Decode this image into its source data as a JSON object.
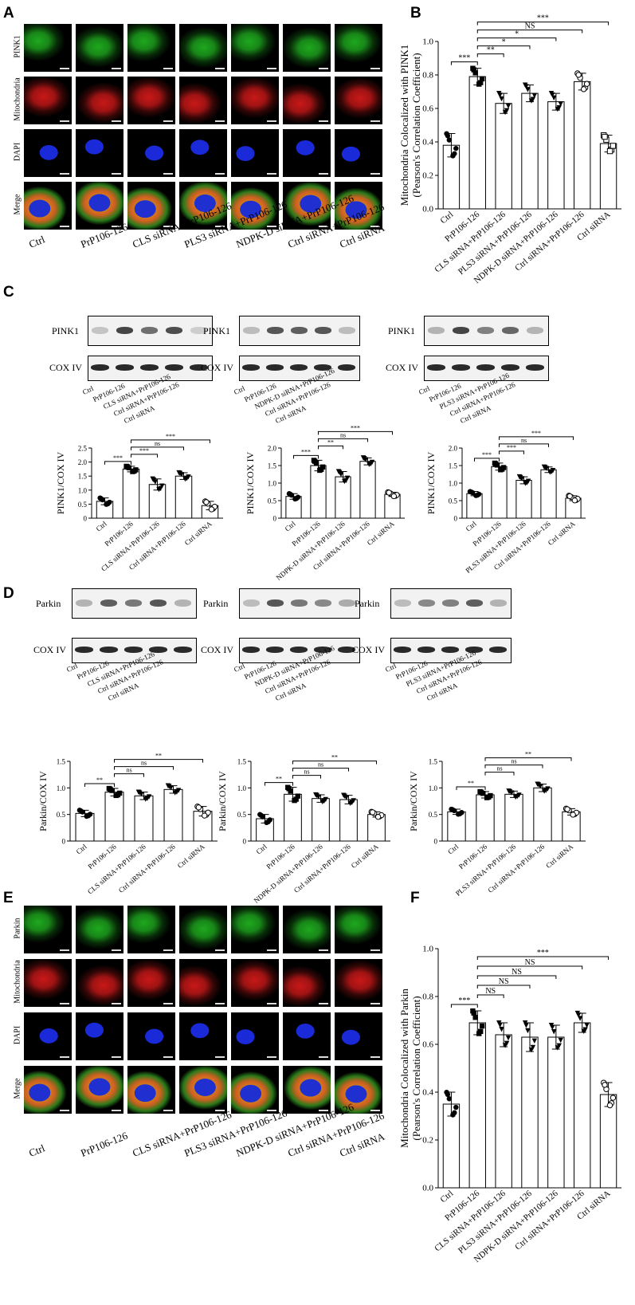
{
  "figure": {
    "panel_letters": [
      "A",
      "B",
      "C",
      "D",
      "E",
      "F"
    ]
  },
  "panelA": {
    "rows": [
      "PINK1",
      "Mitochondria",
      "DAPI",
      "Merge"
    ],
    "row_colors": [
      "#1ea81e",
      "#c81818",
      "#1a2ad8",
      "#c8b41e"
    ],
    "cols": [
      "Ctrl",
      "PrP106-126",
      "CLS siRNA+PrP106-126",
      "PLS3 siRNA+PrP106-126",
      "NDPK-D siRNA+PrP106-126",
      "Ctrl siRNA+PrP106-126",
      "Ctrl siRNA"
    ]
  },
  "panelE": {
    "rows": [
      "Parkin",
      "Mitochondria",
      "DAPI",
      "Merge"
    ],
    "row_colors": [
      "#1ea81e",
      "#c81818",
      "#1a2ad8",
      "#c8b41e"
    ],
    "cols": [
      "Ctrl",
      "PrP106-126",
      "CLS siRNA+PrP106-126",
      "PLS3 siRNA+PrP106-126",
      "NDPK-D siRNA+PrP106-126",
      "Ctrl siRNA+PrP106-126",
      "Ctrl siRNA"
    ]
  },
  "blotsC": [
    {
      "protein": "PINK1",
      "loading": "COX IV",
      "lanes": [
        "Ctrl",
        "PrP106-126",
        "CLS siRNA+PrP106-126",
        "Ctrl siRNA+PrP106-126",
        "Ctrl siRNA"
      ]
    },
    {
      "protein": "PINK1",
      "loading": "COX IV",
      "lanes": [
        "Ctrl",
        "PrP106-126",
        "NDPK-D siRNA+PrP106-126",
        "Ctrl siRNA+PrP106-126",
        "Ctrl siRNA"
      ]
    },
    {
      "protein": "PINK1",
      "loading": "COX IV",
      "lanes": [
        "Ctrl",
        "PrP106-126",
        "PLS3 siRNA+PrP106-126",
        "Ctrl siRNA+PrP106-126",
        "Ctrl siRNA"
      ]
    }
  ],
  "blotsD": [
    {
      "protein": "Parkin",
      "loading": "COX IV",
      "lanes": [
        "Ctrl",
        "PrP106-126",
        "CLS siRNA+PrP106-126",
        "Ctrl siRNA+PrP106-126",
        "Ctrl siRNA"
      ]
    },
    {
      "protein": "Parkin",
      "loading": "COX IV",
      "lanes": [
        "Ctrl",
        "PrP106-126",
        "NDPK-D siRNA+PrP106-126",
        "Ctrl siRNA+PrP106-126",
        "Ctrl siRNA"
      ]
    },
    {
      "protein": "Parkin",
      "loading": "COX IV",
      "lanes": [
        "Ctrl",
        "PrP106-126",
        "PLS3 siRNA+PrP106-126",
        "Ctrl siRNA+PrP106-126",
        "Ctrl siRNA"
      ]
    }
  ],
  "chart_data": [
    {
      "id": "B",
      "type": "bar",
      "ylabel": "Mitochondria Colocalized with PINK1 (Pearson's Correlation Coefficient)",
      "categories": [
        "Ctrl",
        "PrP106-126",
        "CLS siRNA+PrP106-126",
        "PLS3 siRNA+PrP106-126",
        "NDPK-D siRNA+PrP106-126",
        "Ctrl siRNA+PrP106-126",
        "Ctrl siRNA"
      ],
      "values": [
        0.38,
        0.79,
        0.63,
        0.69,
        0.64,
        0.76,
        0.39
      ],
      "errors": [
        0.07,
        0.05,
        0.06,
        0.05,
        0.05,
        0.05,
        0.05
      ],
      "ylim": [
        0,
        1.0
      ],
      "yticks": [
        "0.0",
        "0.2",
        "0.4",
        "0.6",
        "0.8",
        "1.0"
      ],
      "markers": [
        "circle",
        "square",
        "triangle",
        "triangle",
        "triangle",
        "open-circle",
        "open-square"
      ],
      "sig": [
        {
          "from": 0,
          "to": 1,
          "label": "***"
        },
        {
          "from": 1,
          "to": 2,
          "label": "**"
        },
        {
          "from": 1,
          "to": 3,
          "label": "*"
        },
        {
          "from": 1,
          "to": 4,
          "label": "*"
        },
        {
          "from": 1,
          "to": 5,
          "label": "NS"
        },
        {
          "from": 1,
          "to": 6,
          "label": "***"
        }
      ]
    },
    {
      "id": "C1",
      "type": "bar",
      "ylabel": "PINK1/COX IV",
      "categories": [
        "Ctrl",
        "PrP106-126",
        "CLS siRNA+PrP106-126",
        "Ctrl siRNA+PrP106-126",
        "Ctrl siRNA"
      ],
      "values": [
        0.6,
        1.75,
        1.2,
        1.5,
        0.45
      ],
      "errors": [
        0.12,
        0.1,
        0.2,
        0.12,
        0.15
      ],
      "ylim": [
        0,
        2.5
      ],
      "yticks": [
        "0",
        "0.5",
        "1.0",
        "1.5",
        "2.0",
        "2.5"
      ],
      "markers": [
        "circle",
        "square",
        "triangle",
        "triangle",
        "open-circle"
      ],
      "sig": [
        {
          "from": 0,
          "to": 1,
          "label": "***"
        },
        {
          "from": 1,
          "to": 2,
          "label": "***"
        },
        {
          "from": 1,
          "to": 3,
          "label": "ns"
        },
        {
          "from": 1,
          "to": 4,
          "label": "***"
        }
      ]
    },
    {
      "id": "C2",
      "type": "bar",
      "ylabel": "PINK1/COX IV",
      "categories": [
        "Ctrl",
        "PrP106-126",
        "NDPK-D siRNA+PrP106-126",
        "Ctrl siRNA+PrP106-126",
        "Ctrl siRNA"
      ],
      "values": [
        0.62,
        1.5,
        1.18,
        1.62,
        0.68
      ],
      "errors": [
        0.08,
        0.15,
        0.15,
        0.1,
        0.06
      ],
      "ylim": [
        0,
        2.0
      ],
      "yticks": [
        "0",
        "0.5",
        "1.0",
        "1.5",
        "2.0"
      ],
      "markers": [
        "circle",
        "square",
        "triangle",
        "triangle",
        "open-circle"
      ],
      "sig": [
        {
          "from": 0,
          "to": 1,
          "label": "***"
        },
        {
          "from": 1,
          "to": 2,
          "label": "**"
        },
        {
          "from": 1,
          "to": 3,
          "label": "ns"
        },
        {
          "from": 1,
          "to": 4,
          "label": "***"
        }
      ]
    },
    {
      "id": "C3",
      "type": "bar",
      "ylabel": "PINK1/COX IV",
      "categories": [
        "Ctrl",
        "PrP106-126",
        "PLS3 siRNA+PrP106-126",
        "Ctrl siRNA+PrP106-126",
        "Ctrl siRNA"
      ],
      "values": [
        0.7,
        1.47,
        1.08,
        1.38,
        0.57
      ],
      "errors": [
        0.06,
        0.1,
        0.1,
        0.08,
        0.07
      ],
      "ylim": [
        0,
        2.0
      ],
      "yticks": [
        "0",
        "0.5",
        "1.0",
        "1.5",
        "2.0"
      ],
      "markers": [
        "circle",
        "square",
        "triangle",
        "triangle",
        "open-circle"
      ],
      "sig": [
        {
          "from": 0,
          "to": 1,
          "label": "***"
        },
        {
          "from": 1,
          "to": 2,
          "label": "***"
        },
        {
          "from": 1,
          "to": 3,
          "label": "ns"
        },
        {
          "from": 1,
          "to": 4,
          "label": "***"
        }
      ]
    },
    {
      "id": "D1",
      "type": "bar",
      "ylabel": "Parkin/COX IV",
      "categories": [
        "Ctrl",
        "PrP106-126",
        "CLS siRNA+PrP106-126",
        "Ctrl siRNA+PrP106-126",
        "Ctrl siRNA"
      ],
      "values": [
        0.52,
        0.92,
        0.85,
        0.97,
        0.56
      ],
      "errors": [
        0.06,
        0.07,
        0.07,
        0.07,
        0.09
      ],
      "ylim": [
        0,
        1.5
      ],
      "yticks": [
        "0",
        "0.5",
        "1.0",
        "1.5"
      ],
      "markers": [
        "circle",
        "square",
        "triangle",
        "triangle",
        "open-circle"
      ],
      "sig": [
        {
          "from": 0,
          "to": 1,
          "label": "**"
        },
        {
          "from": 1,
          "to": 2,
          "label": "ns"
        },
        {
          "from": 1,
          "to": 3,
          "label": "ns"
        },
        {
          "from": 1,
          "to": 4,
          "label": "**"
        }
      ]
    },
    {
      "id": "D2",
      "type": "bar",
      "ylabel": "Parkin/COX IV",
      "categories": [
        "Ctrl",
        "PrP106-126",
        "NDPK-D siRNA+PrP106-126",
        "Ctrl siRNA+PrP106-126",
        "Ctrl siRNA"
      ],
      "values": [
        0.42,
        0.88,
        0.8,
        0.78,
        0.5
      ],
      "errors": [
        0.08,
        0.13,
        0.07,
        0.08,
        0.05
      ],
      "ylim": [
        0,
        1.5
      ],
      "yticks": [
        "0",
        "0.5",
        "1.0",
        "1.5"
      ],
      "markers": [
        "circle",
        "square",
        "triangle",
        "triangle",
        "open-circle"
      ],
      "sig": [
        {
          "from": 0,
          "to": 1,
          "label": "**"
        },
        {
          "from": 1,
          "to": 2,
          "label": "ns"
        },
        {
          "from": 1,
          "to": 3,
          "label": "ns"
        },
        {
          "from": 1,
          "to": 4,
          "label": "**"
        }
      ]
    },
    {
      "id": "D3",
      "type": "bar",
      "ylabel": "Parkin/COX IV",
      "categories": [
        "Ctrl",
        "PrP106-126",
        "PLS3 siRNA+PrP106-126",
        "Ctrl siRNA+PrP106-126",
        "Ctrl siRNA"
      ],
      "values": [
        0.55,
        0.87,
        0.88,
        1.0,
        0.55
      ],
      "errors": [
        0.05,
        0.06,
        0.06,
        0.07,
        0.06
      ],
      "ylim": [
        0,
        1.5
      ],
      "yticks": [
        "0",
        "0.5",
        "1.0",
        "1.5"
      ],
      "markers": [
        "circle",
        "square",
        "triangle",
        "triangle",
        "open-circle"
      ],
      "sig": [
        {
          "from": 0,
          "to": 1,
          "label": "**"
        },
        {
          "from": 1,
          "to": 2,
          "label": "ns"
        },
        {
          "from": 1,
          "to": 3,
          "label": "ns"
        },
        {
          "from": 1,
          "to": 4,
          "label": "**"
        }
      ]
    },
    {
      "id": "F",
      "type": "bar",
      "ylabel": "Mitochondria Colocalized with Parkin (Pearson's Correlation Coefficient)",
      "categories": [
        "Ctrl",
        "PrP106-126",
        "CLS siRNA+PrP106-126",
        "PLS3 siRNA+PrP106-126",
        "NDPK-D siRNA+PrP106-126",
        "Ctrl siRNA+PrP106-126",
        "Ctrl siRNA"
      ],
      "values": [
        0.35,
        0.69,
        0.64,
        0.63,
        0.63,
        0.69,
        0.39
      ],
      "errors": [
        0.05,
        0.05,
        0.05,
        0.06,
        0.05,
        0.04,
        0.05
      ],
      "ylim": [
        0,
        1.0
      ],
      "yticks": [
        "0.0",
        "0.2",
        "0.4",
        "0.6",
        "0.8",
        "1.0"
      ],
      "markers": [
        "circle",
        "square",
        "triangle",
        "triangle",
        "triangle",
        "triangle",
        "open-circle"
      ],
      "sig": [
        {
          "from": 0,
          "to": 1,
          "label": "***"
        },
        {
          "from": 1,
          "to": 2,
          "label": "NS"
        },
        {
          "from": 1,
          "to": 3,
          "label": "NS"
        },
        {
          "from": 1,
          "to": 4,
          "label": "NS"
        },
        {
          "from": 1,
          "to": 5,
          "label": "NS"
        },
        {
          "from": 1,
          "to": 6,
          "label": "***"
        }
      ]
    }
  ]
}
